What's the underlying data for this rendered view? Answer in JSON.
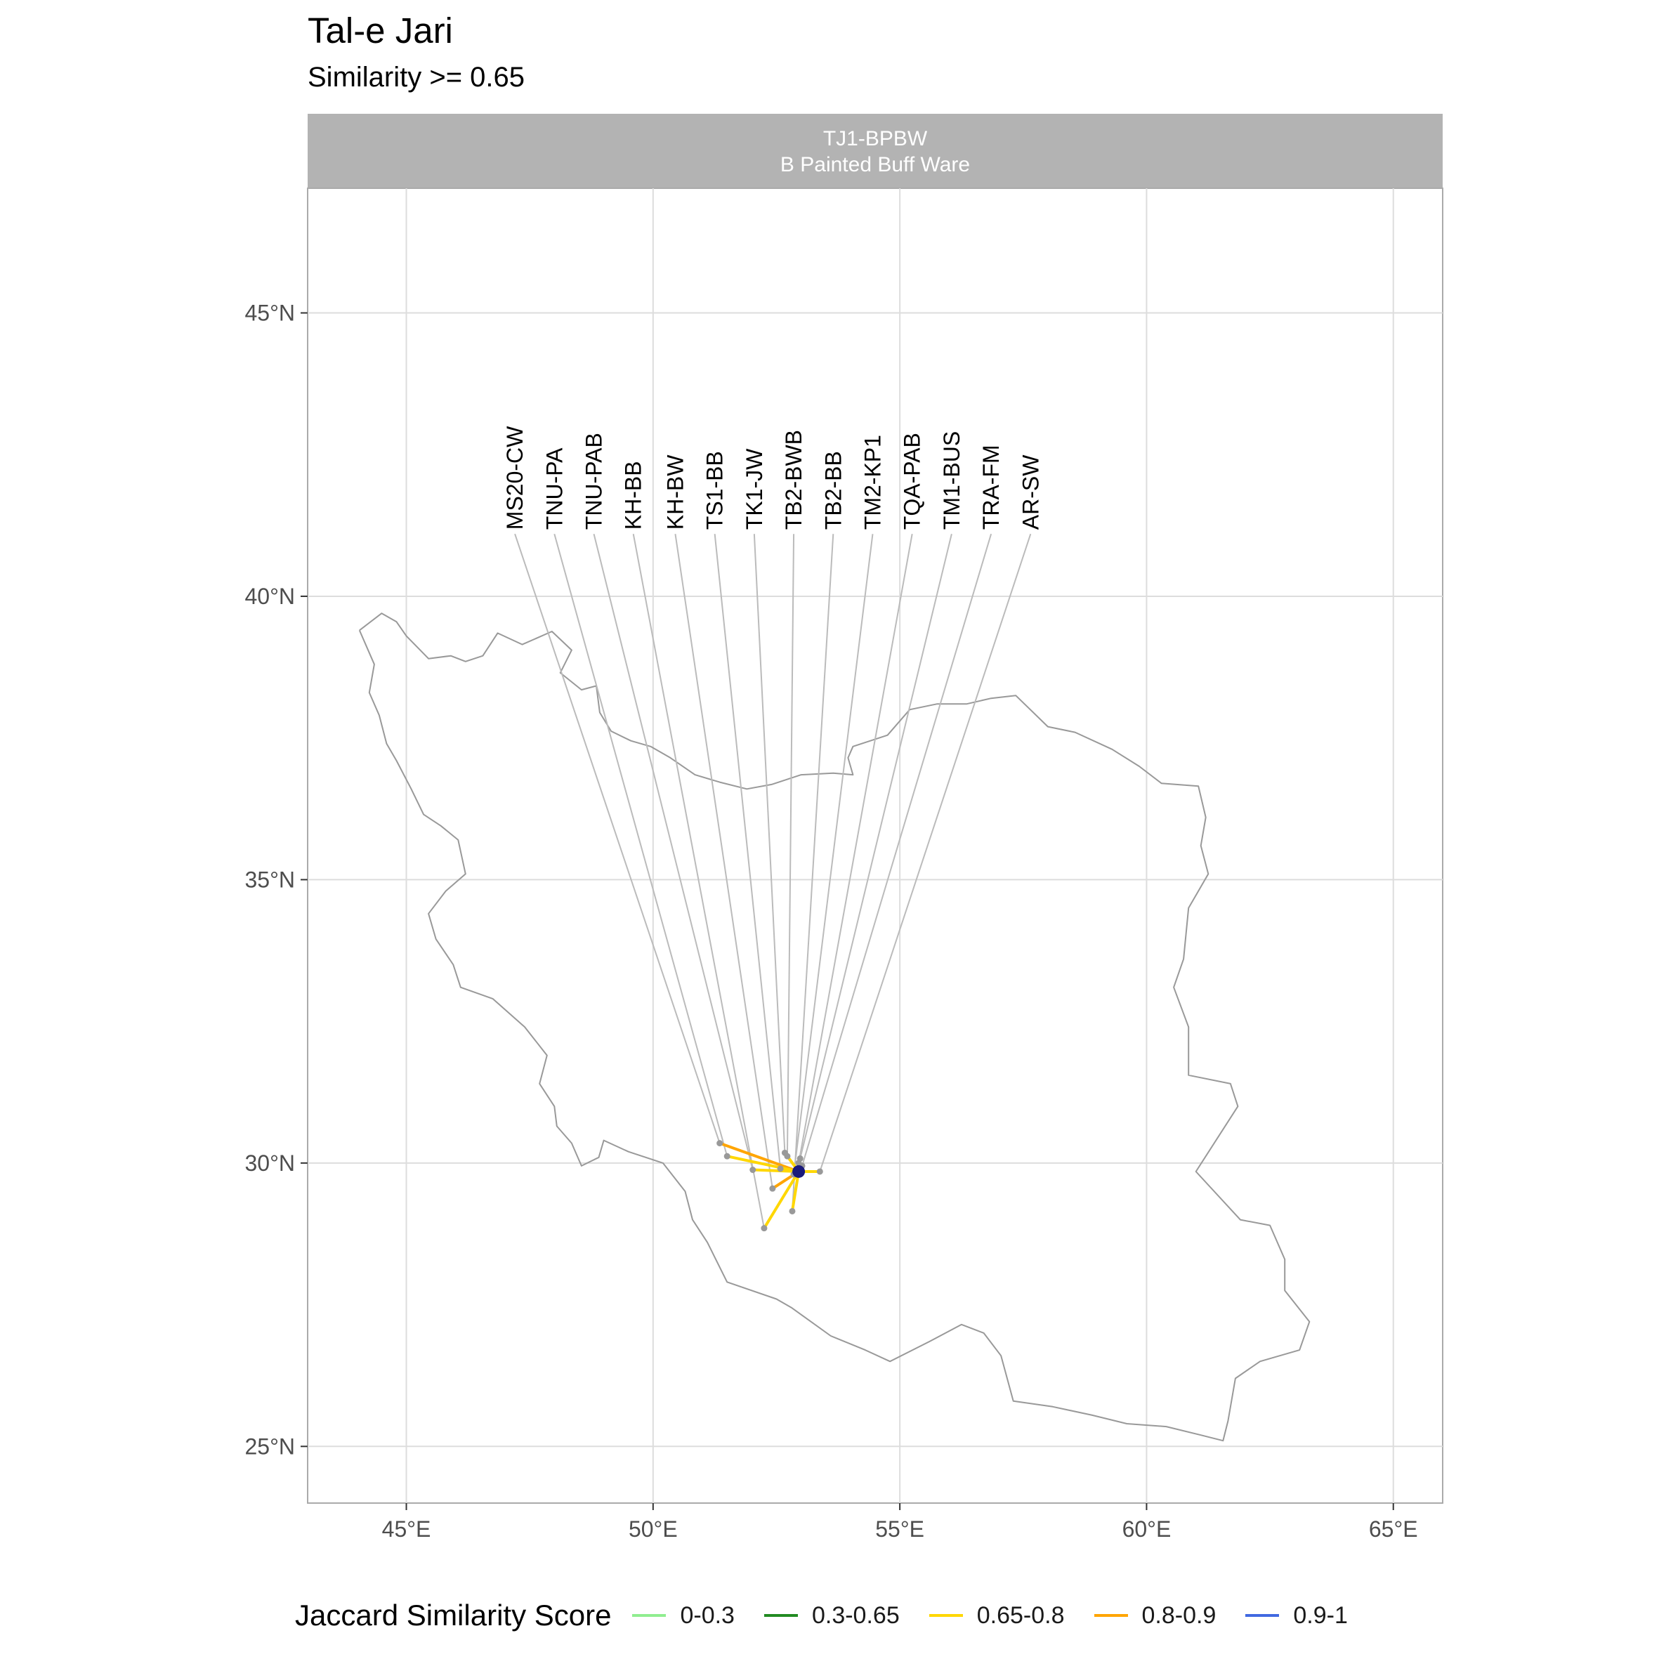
{
  "title": "Tal-e Jari",
  "subtitle": "Similarity >= 0.65",
  "strip": {
    "line1": "TJ1-BPBW",
    "line2": "B Painted Buff Ware"
  },
  "chart_data": {
    "type": "map",
    "x_axis": {
      "min": 43.0,
      "max": 66.0,
      "ticks": [
        45,
        50,
        55,
        60,
        65
      ],
      "tick_labels": [
        "45°E",
        "50°E",
        "55°E",
        "60°E",
        "65°E"
      ]
    },
    "y_axis": {
      "min": 24.0,
      "max": 47.2,
      "ticks": [
        25,
        30,
        35,
        40,
        45
      ],
      "tick_labels": [
        "25°N",
        "30°N",
        "35°N",
        "40°N",
        "45°N"
      ]
    },
    "grid": true,
    "origin": {
      "name": "TJ1-BPBW",
      "lon": 52.95,
      "lat": 29.85
    },
    "label_lat": 41.1,
    "sites": [
      {
        "label": "MS20-CW",
        "lon": 51.35,
        "lat": 30.35,
        "label_lon": 47.2,
        "score": 0.82
      },
      {
        "label": "TNU-PA",
        "lon": 51.5,
        "lat": 30.12,
        "label_lon": 48.0,
        "score": 0.72
      },
      {
        "label": "TNU-PAB",
        "lon": 52.02,
        "lat": 29.88,
        "label_lon": 48.8,
        "score": 0.72
      },
      {
        "label": "KH-BB",
        "lon": 52.25,
        "lat": 28.85,
        "label_lon": 49.6,
        "score": 0.72
      },
      {
        "label": "KH-BW",
        "lon": 52.42,
        "lat": 29.55,
        "label_lon": 50.45,
        "score": 0.82
      },
      {
        "label": "TS1-BB",
        "lon": 52.58,
        "lat": 29.9,
        "label_lon": 51.25,
        "score": 0.72
      },
      {
        "label": "TK1-JW",
        "lon": 52.67,
        "lat": 30.18,
        "label_lon": 52.05,
        "score": 0.72
      },
      {
        "label": "TB2-BWB",
        "lon": 52.72,
        "lat": 30.12,
        "label_lon": 52.85,
        "score": 0.72
      },
      {
        "label": "TB2-BB",
        "lon": 52.82,
        "lat": 29.15,
        "label_lon": 53.65,
        "score": 0.72
      },
      {
        "label": "TM2-KP1",
        "lon": 52.85,
        "lat": 29.8,
        "label_lon": 54.45,
        "score": 0.72
      },
      {
        "label": "TQA-PAB",
        "lon": 52.95,
        "lat": 30.0,
        "label_lon": 55.25,
        "score": 0.72
      },
      {
        "label": "TM1-BUS",
        "lon": 52.98,
        "lat": 30.08,
        "label_lon": 56.05,
        "score": 0.72
      },
      {
        "label": "TRA-FM",
        "lon": 53.02,
        "lat": 29.95,
        "label_lon": 56.85,
        "score": 0.72
      },
      {
        "label": "AR-SW",
        "lon": 53.38,
        "lat": 29.85,
        "label_lon": 57.65,
        "score": 0.72
      }
    ],
    "iran_outline": [
      [
        44.05,
        39.4
      ],
      [
        44.5,
        39.7
      ],
      [
        44.8,
        39.55
      ],
      [
        45.0,
        39.3
      ],
      [
        45.45,
        38.9
      ],
      [
        45.9,
        38.95
      ],
      [
        46.2,
        38.85
      ],
      [
        46.55,
        38.95
      ],
      [
        46.85,
        39.35
      ],
      [
        47.35,
        39.15
      ],
      [
        47.95,
        39.38
      ],
      [
        48.35,
        39.05
      ],
      [
        48.12,
        38.65
      ],
      [
        48.55,
        38.35
      ],
      [
        48.85,
        38.42
      ],
      [
        48.92,
        37.95
      ],
      [
        49.15,
        37.62
      ],
      [
        49.55,
        37.45
      ],
      [
        49.95,
        37.35
      ],
      [
        50.35,
        37.15
      ],
      [
        50.85,
        36.85
      ],
      [
        51.35,
        36.72
      ],
      [
        51.9,
        36.6
      ],
      [
        52.4,
        36.68
      ],
      [
        53.0,
        36.85
      ],
      [
        53.65,
        36.88
      ],
      [
        54.05,
        36.85
      ],
      [
        53.95,
        37.15
      ],
      [
        54.05,
        37.35
      ],
      [
        54.75,
        37.55
      ],
      [
        55.2,
        38.0
      ],
      [
        55.75,
        38.1
      ],
      [
        56.35,
        38.1
      ],
      [
        56.85,
        38.2
      ],
      [
        57.35,
        38.25
      ],
      [
        58.0,
        37.7
      ],
      [
        58.55,
        37.6
      ],
      [
        59.3,
        37.3
      ],
      [
        59.85,
        37.0
      ],
      [
        60.3,
        36.7
      ],
      [
        61.05,
        36.65
      ],
      [
        61.2,
        36.1
      ],
      [
        61.1,
        35.6
      ],
      [
        61.25,
        35.1
      ],
      [
        60.85,
        34.5
      ],
      [
        60.75,
        33.6
      ],
      [
        60.55,
        33.1
      ],
      [
        60.85,
        32.4
      ],
      [
        60.85,
        31.55
      ],
      [
        61.7,
        31.4
      ],
      [
        61.85,
        31.0
      ],
      [
        61.0,
        29.85
      ],
      [
        61.9,
        29.0
      ],
      [
        62.5,
        28.9
      ],
      [
        62.8,
        28.3
      ],
      [
        62.8,
        27.75
      ],
      [
        63.3,
        27.2
      ],
      [
        63.1,
        26.7
      ],
      [
        62.3,
        26.5
      ],
      [
        61.8,
        26.2
      ],
      [
        61.65,
        25.45
      ],
      [
        61.55,
        25.1
      ],
      [
        61.1,
        25.2
      ],
      [
        60.4,
        25.35
      ],
      [
        59.6,
        25.4
      ],
      [
        58.9,
        25.55
      ],
      [
        58.1,
        25.7
      ],
      [
        57.3,
        25.8
      ],
      [
        57.05,
        26.6
      ],
      [
        56.7,
        27.0
      ],
      [
        56.25,
        27.15
      ],
      [
        55.6,
        26.85
      ],
      [
        54.8,
        26.5
      ],
      [
        54.3,
        26.7
      ],
      [
        53.6,
        26.95
      ],
      [
        52.8,
        27.45
      ],
      [
        52.5,
        27.6
      ],
      [
        51.5,
        27.9
      ],
      [
        51.1,
        28.6
      ],
      [
        50.8,
        29.0
      ],
      [
        50.65,
        29.5
      ],
      [
        50.2,
        30.0
      ],
      [
        49.5,
        30.2
      ],
      [
        49.0,
        30.4
      ],
      [
        48.9,
        30.1
      ],
      [
        48.55,
        29.95
      ],
      [
        48.35,
        30.35
      ],
      [
        48.05,
        30.65
      ],
      [
        48.0,
        31.0
      ],
      [
        47.7,
        31.4
      ],
      [
        47.85,
        31.9
      ],
      [
        47.4,
        32.4
      ],
      [
        46.75,
        32.9
      ],
      [
        46.1,
        33.1
      ],
      [
        45.95,
        33.5
      ],
      [
        45.6,
        33.95
      ],
      [
        45.45,
        34.4
      ],
      [
        45.8,
        34.8
      ],
      [
        46.2,
        35.1
      ],
      [
        46.05,
        35.7
      ],
      [
        45.7,
        35.95
      ],
      [
        45.35,
        36.15
      ],
      [
        45.1,
        36.6
      ],
      [
        44.8,
        37.1
      ],
      [
        44.6,
        37.4
      ],
      [
        44.45,
        37.9
      ],
      [
        44.25,
        38.3
      ],
      [
        44.35,
        38.8
      ],
      [
        44.05,
        39.4
      ]
    ]
  },
  "legend": {
    "title": "Jaccard Similarity Score",
    "items": [
      {
        "label": "0-0.3",
        "color": "#90EE90"
      },
      {
        "label": "0.3-0.65",
        "color": "#228B22"
      },
      {
        "label": "0.65-0.8",
        "color": "#FFD700"
      },
      {
        "label": "0.8-0.9",
        "color": "#FFA500"
      },
      {
        "label": "0.9-1",
        "color": "#4169E1"
      }
    ]
  },
  "colors": {
    "grid": "#DDDDDD",
    "panel_border": "#AAAAAA",
    "strip": "#B3B3B3",
    "border_line": "#999999",
    "leader_line": "#BBBBBB",
    "origin": "#1a1a7a"
  }
}
